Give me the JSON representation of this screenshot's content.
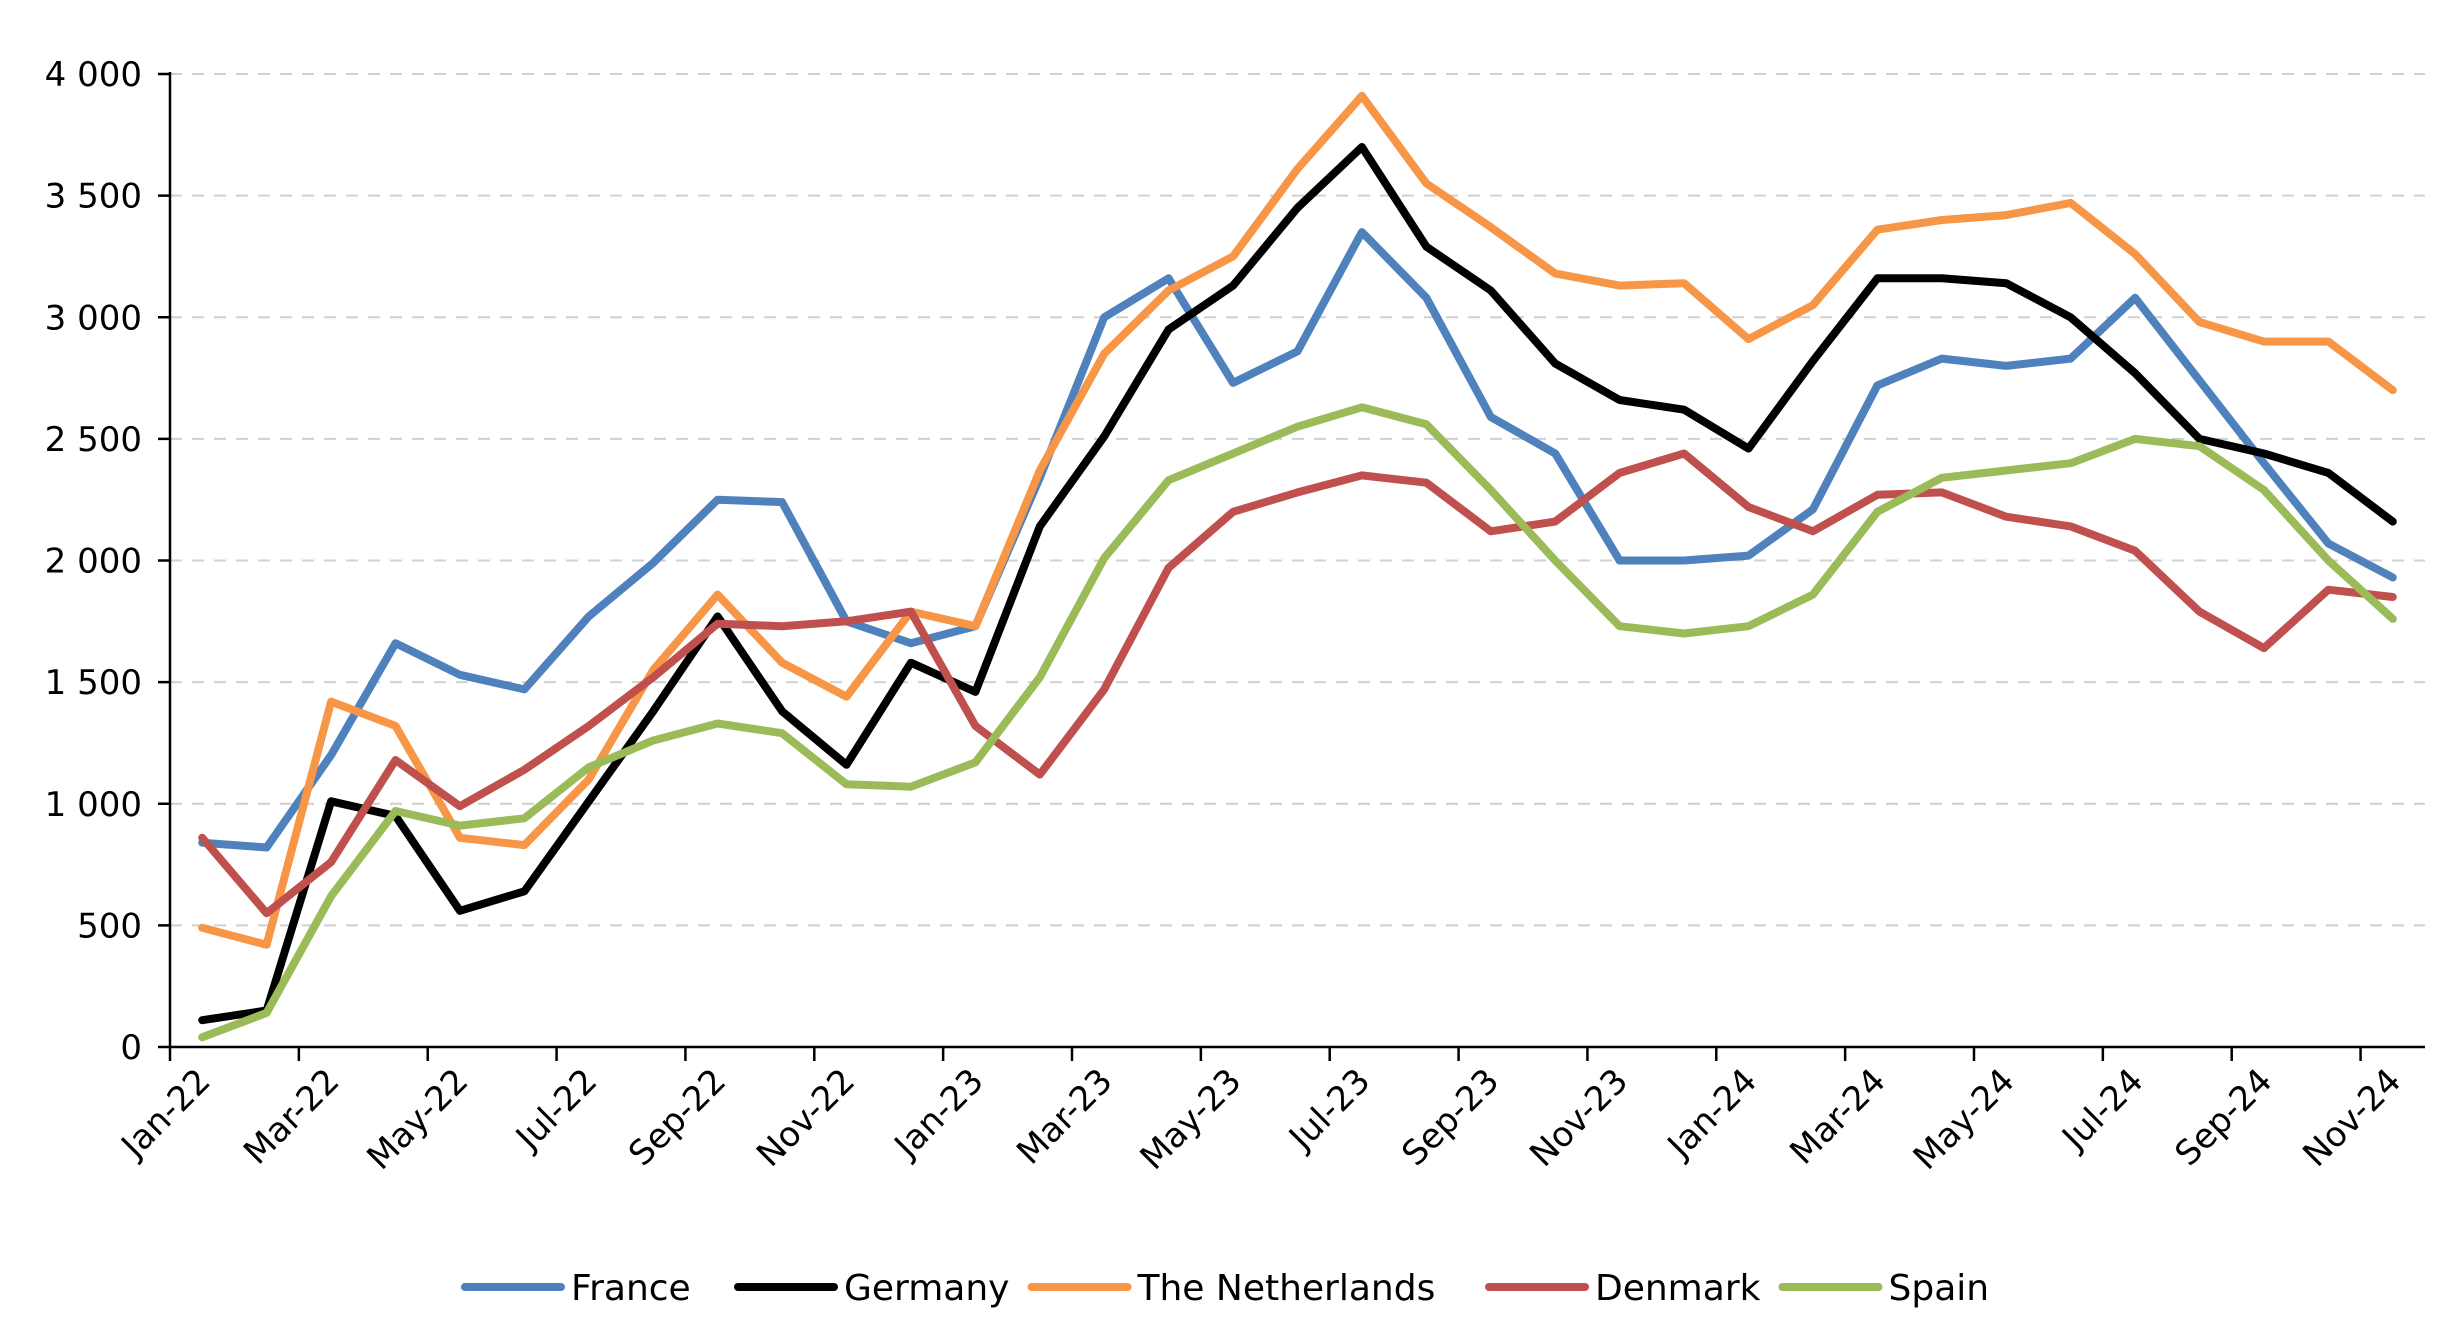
{
  "chart_data": {
    "type": "line",
    "title": "",
    "xlabel": "",
    "ylabel": "",
    "ylim": [
      0,
      4000
    ],
    "yticks": [
      0,
      500,
      1000,
      1500,
      2000,
      2500,
      3000,
      3500,
      4000
    ],
    "ytick_labels": [
      "0",
      "500",
      "1 000",
      "1 500",
      "2 000",
      "2 500",
      "3 000",
      "3 500",
      "4 000"
    ],
    "grid": true,
    "legend_position": "bottom",
    "categories": [
      "Jan-22",
      "Feb-22",
      "Mar-22",
      "Apr-22",
      "May-22",
      "Jun-22",
      "Jul-22",
      "Aug-22",
      "Sep-22",
      "Oct-22",
      "Nov-22",
      "Dec-22",
      "Jan-23",
      "Feb-23",
      "Mar-23",
      "Apr-23",
      "May-23",
      "Jun-23",
      "Jul-23",
      "Aug-23",
      "Sep-23",
      "Oct-23",
      "Nov-23",
      "Dec-23",
      "Jan-24",
      "Feb-24",
      "Mar-24",
      "Apr-24",
      "May-24",
      "Jun-24",
      "Jul-24",
      "Aug-24",
      "Sep-24",
      "Oct-24",
      "Nov-24"
    ],
    "x_tick_labels": [
      "Jan-22",
      "Mar-22",
      "May-22",
      "Jul-22",
      "Sep-22",
      "Nov-22",
      "Jan-23",
      "Mar-23",
      "May-23",
      "Jul-23",
      "Sep-23",
      "Nov-23",
      "Jan-24",
      "Mar-24",
      "May-24",
      "Jul-24",
      "Sep-24",
      "Nov-24"
    ],
    "series": [
      {
        "name": "France",
        "color": "#4f81bd",
        "values": [
          840,
          820,
          1200,
          1660,
          1530,
          1470,
          1770,
          1990,
          2250,
          2240,
          1750,
          1660,
          1730,
          2340,
          3000,
          3160,
          2730,
          2860,
          3350,
          3080,
          2590,
          2440,
          2000,
          2000,
          2020,
          2210,
          2720,
          2830,
          2800,
          2830,
          3080,
          2740,
          2400,
          2070,
          1930
        ]
      },
      {
        "name": "Germany",
        "color": "#000000",
        "values": [
          110,
          150,
          1010,
          950,
          560,
          640,
          1010,
          1380,
          1770,
          1380,
          1160,
          1580,
          1460,
          2140,
          2510,
          2950,
          3130,
          3450,
          3700,
          3290,
          3110,
          2810,
          2660,
          2620,
          2460,
          2820,
          3160,
          3160,
          3140,
          3000,
          2770,
          2500,
          2440,
          2360,
          2160
        ]
      },
      {
        "name": "The Netherlands",
        "color": "#f79646",
        "values": [
          490,
          420,
          1420,
          1320,
          860,
          830,
          1100,
          1550,
          1860,
          1580,
          1440,
          1790,
          1730,
          2370,
          2850,
          3110,
          3250,
          3610,
          3910,
          3550,
          3370,
          3180,
          3130,
          3140,
          2910,
          3050,
          3360,
          3400,
          3420,
          3470,
          3260,
          2980,
          2900,
          2900,
          2700
        ]
      },
      {
        "name": "Denmark",
        "color": "#c0504d",
        "values": [
          860,
          550,
          760,
          1180,
          990,
          1140,
          1320,
          1520,
          1740,
          1730,
          1750,
          1790,
          1320,
          1120,
          1470,
          1970,
          2200,
          2280,
          2350,
          2320,
          2120,
          2160,
          2360,
          2440,
          2220,
          2120,
          2270,
          2280,
          2180,
          2140,
          2040,
          1790,
          1640,
          1880,
          1850
        ]
      },
      {
        "name": "Spain",
        "color": "#9bbb59",
        "values": [
          40,
          140,
          620,
          970,
          910,
          940,
          1150,
          1260,
          1330,
          1290,
          1080,
          1070,
          1170,
          1520,
          2010,
          2330,
          2440,
          2550,
          2630,
          2560,
          2290,
          2000,
          1730,
          1700,
          1730,
          1860,
          2200,
          2340,
          2370,
          2400,
          2500,
          2470,
          2290,
          2000,
          1760
        ]
      }
    ]
  }
}
